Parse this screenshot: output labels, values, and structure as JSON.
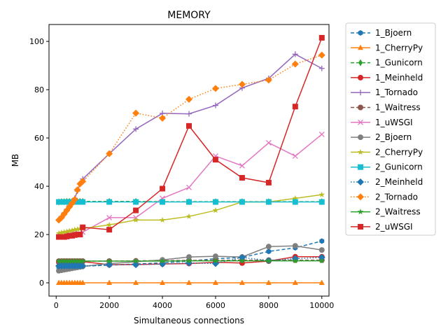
{
  "chart_data": {
    "type": "line",
    "title": "MEMORY",
    "xlabel": "Simultaneous connections",
    "ylabel": "MB",
    "xlim": [
      -270,
      10270
    ],
    "ylim": [
      -5.5,
      107
    ],
    "xticks": [
      0,
      2000,
      4000,
      6000,
      8000,
      10000
    ],
    "yticks": [
      0,
      20,
      40,
      60,
      80,
      100
    ],
    "grid": false,
    "legend_position": "outside-right",
    "series": [
      {
        "name": "1_Bjoern",
        "color": "#1f77b4",
        "dash": "5,3",
        "marker": "hexagon",
        "x": [
          100,
          200,
          300,
          400,
          500,
          600,
          700,
          800,
          900,
          1000,
          2000,
          3000,
          4000,
          5000,
          6000,
          7000,
          8000,
          9000,
          10000
        ],
        "y": [
          6.5,
          6.5,
          6.6,
          6.6,
          6.7,
          6.7,
          6.8,
          6.8,
          6.9,
          6.9,
          7.3,
          7.8,
          8.3,
          9.0,
          10.0,
          10.5,
          13.0,
          14.5,
          17.3
        ]
      },
      {
        "name": "1_CherryPy",
        "color": "#ff7f0e",
        "dash": "",
        "marker": "triangle-up",
        "x": [
          100,
          200,
          300,
          400,
          500,
          600,
          700,
          800,
          900,
          1000,
          2000,
          3000,
          4000,
          5000,
          6000,
          7000,
          8000,
          9000,
          10000
        ],
        "y": [
          0,
          0,
          0,
          0,
          0,
          0,
          0,
          0,
          0,
          0,
          0,
          0,
          0,
          0,
          0,
          0,
          0,
          0,
          0
        ]
      },
      {
        "name": "1_Gunicorn",
        "color": "#2ca02c",
        "dash": "5,3",
        "marker": "thin-diamond",
        "x": [
          100,
          200,
          300,
          400,
          500,
          600,
          700,
          800,
          900,
          1000,
          2000,
          3000,
          4000,
          5000,
          6000,
          7000,
          8000,
          9000,
          10000
        ],
        "y": [
          33.5,
          33.6,
          33.6,
          33.7,
          33.7,
          33.7,
          33.7,
          33.7,
          33.7,
          33.7,
          33.7,
          33.7,
          33.6,
          33.6,
          33.6,
          33.6,
          33.6,
          33.6,
          33.6
        ]
      },
      {
        "name": "1_Meinheld",
        "color": "#d62728",
        "dash": "",
        "marker": "circle",
        "x": [
          100,
          200,
          300,
          400,
          500,
          600,
          700,
          800,
          900,
          1000,
          2000,
          3000,
          4000,
          5000,
          6000,
          7000,
          8000,
          9000,
          10000
        ],
        "y": [
          8.5,
          8.6,
          8.6,
          8.7,
          8.7,
          8.7,
          8.8,
          8.8,
          8.8,
          8.8,
          7.5,
          7.6,
          7.8,
          8.0,
          8.5,
          8.2,
          9.0,
          10.8,
          10.8
        ]
      },
      {
        "name": "1_Tornado",
        "color": "#9467bd",
        "dash": "",
        "marker": "plus",
        "x": [
          100,
          200,
          300,
          400,
          500,
          600,
          700,
          800,
          900,
          1000,
          2000,
          3000,
          4000,
          5000,
          6000,
          7000,
          8000,
          9000,
          10000
        ],
        "y": [
          26,
          27.5,
          29,
          30.5,
          32,
          33.5,
          35,
          38,
          41,
          43,
          53.5,
          63.7,
          70.2,
          70,
          73.5,
          80.7,
          84.7,
          94.7,
          88.8
        ]
      },
      {
        "name": "1_Waitress",
        "color": "#8c564b",
        "dash": "5,3",
        "marker": "circle",
        "x": [
          100,
          200,
          300,
          400,
          500,
          600,
          700,
          800,
          900,
          1000,
          2000,
          3000,
          4000,
          5000,
          6000,
          7000,
          8000,
          9000,
          10000
        ],
        "y": [
          9.0,
          9.0,
          9.0,
          9.0,
          9.0,
          9.0,
          9.0,
          9.0,
          9.0,
          9.0,
          9.0,
          9.1,
          9.2,
          9.3,
          9.3,
          9.4,
          9.4,
          9.4,
          9.4
        ]
      },
      {
        "name": "1_uWSGI",
        "color": "#e377c2",
        "dash": "",
        "marker": "x",
        "x": [
          100,
          200,
          300,
          400,
          500,
          600,
          700,
          800,
          900,
          1000,
          2000,
          3000,
          4000,
          5000,
          6000,
          7000,
          8000,
          9000,
          10000
        ],
        "y": [
          19,
          19,
          19.5,
          20,
          20,
          20.5,
          20.5,
          20,
          20,
          21,
          27,
          27,
          35,
          39.5,
          52.5,
          48.5,
          58,
          52.5,
          61.5
        ]
      },
      {
        "name": "2_Bjoern",
        "color": "#7f7f7f",
        "dash": "",
        "marker": "circle",
        "x": [
          100,
          200,
          300,
          400,
          500,
          600,
          700,
          800,
          900,
          1000,
          2000,
          3000,
          4000,
          5000,
          6000,
          7000,
          8000,
          9000,
          10000
        ],
        "y": [
          5.0,
          5.2,
          5.4,
          5.6,
          5.8,
          6.0,
          6.2,
          6.4,
          6.6,
          6.8,
          8.0,
          8.7,
          9.5,
          10.7,
          11.0,
          10.7,
          15.0,
          15.3,
          13.6
        ]
      },
      {
        "name": "2_CherryPy",
        "color": "#bcbd22",
        "dash": "",
        "marker": "star",
        "x": [
          100,
          200,
          300,
          400,
          500,
          600,
          700,
          800,
          900,
          1000,
          2000,
          3000,
          4000,
          5000,
          6000,
          7000,
          8000,
          9000,
          10000
        ],
        "y": [
          20.5,
          20.8,
          21,
          21.2,
          21.5,
          21.7,
          22,
          22.2,
          22.4,
          22.5,
          24,
          26,
          26,
          27.5,
          30,
          33.5,
          33.5,
          35,
          36.5
        ]
      },
      {
        "name": "2_Gunicorn",
        "color": "#17becf",
        "dash": "",
        "marker": "square",
        "x": [
          100,
          200,
          300,
          400,
          500,
          600,
          700,
          800,
          900,
          1000,
          2000,
          3000,
          4000,
          5000,
          6000,
          7000,
          8000,
          9000,
          10000
        ],
        "y": [
          33.5,
          33.5,
          33.5,
          33.5,
          33.5,
          33.5,
          33.5,
          33.5,
          33.5,
          33.5,
          33.5,
          33.5,
          33.5,
          33.5,
          33.5,
          33.5,
          33.5,
          33.5,
          33.5
        ]
      },
      {
        "name": "2_Meinheld",
        "color": "#1f77b4",
        "dash": "1.5,2.5",
        "marker": "diamond",
        "x": [
          100,
          200,
          300,
          400,
          500,
          600,
          700,
          800,
          900,
          1000,
          2000,
          3000,
          4000,
          5000,
          6000,
          7000,
          8000,
          9000,
          10000
        ],
        "y": [
          7.0,
          7.0,
          7.0,
          7.0,
          7.0,
          7.0,
          7.0,
          7.0,
          7.0,
          7.0,
          7.5,
          7.5,
          7.8,
          8.2,
          8.0,
          10.5,
          9.2,
          10.0,
          10.5
        ]
      },
      {
        "name": "2_Tornado",
        "color": "#ff7f0e",
        "dash": "1.5,2.5",
        "marker": "diamond",
        "x": [
          100,
          200,
          300,
          400,
          500,
          600,
          700,
          800,
          900,
          1000,
          2000,
          3000,
          4000,
          5000,
          6000,
          7000,
          8000,
          9000,
          10000
        ],
        "y": [
          26,
          27,
          28.5,
          30,
          31.5,
          33,
          34.5,
          38.5,
          41,
          42,
          53.5,
          70.3,
          68.2,
          76,
          80.5,
          82.2,
          84,
          90.6,
          94.3
        ]
      },
      {
        "name": "2_Waitress",
        "color": "#2ca02c",
        "dash": "",
        "marker": "star",
        "x": [
          100,
          200,
          300,
          400,
          500,
          600,
          700,
          800,
          900,
          1000,
          2000,
          3000,
          4000,
          5000,
          6000,
          7000,
          8000,
          9000,
          10000
        ],
        "y": [
          9.0,
          9.0,
          9.0,
          9.0,
          9.0,
          9.0,
          9.0,
          9.0,
          9.0,
          9.0,
          9.0,
          9.0,
          9.0,
          9.1,
          9.1,
          9.1,
          9.1,
          9.1,
          9.1
        ]
      },
      {
        "name": "2_uWSGI",
        "color": "#d62728",
        "dash": "",
        "marker": "square",
        "x": [
          100,
          200,
          300,
          400,
          500,
          600,
          700,
          800,
          900,
          1000,
          2000,
          3000,
          4000,
          5000,
          6000,
          7000,
          8000,
          9000,
          10000
        ],
        "y": [
          19,
          19,
          19,
          19.2,
          19.5,
          19.5,
          19.8,
          20,
          20,
          23,
          22,
          30,
          39,
          65,
          51,
          43.5,
          41.5,
          73,
          101.5
        ]
      }
    ]
  }
}
